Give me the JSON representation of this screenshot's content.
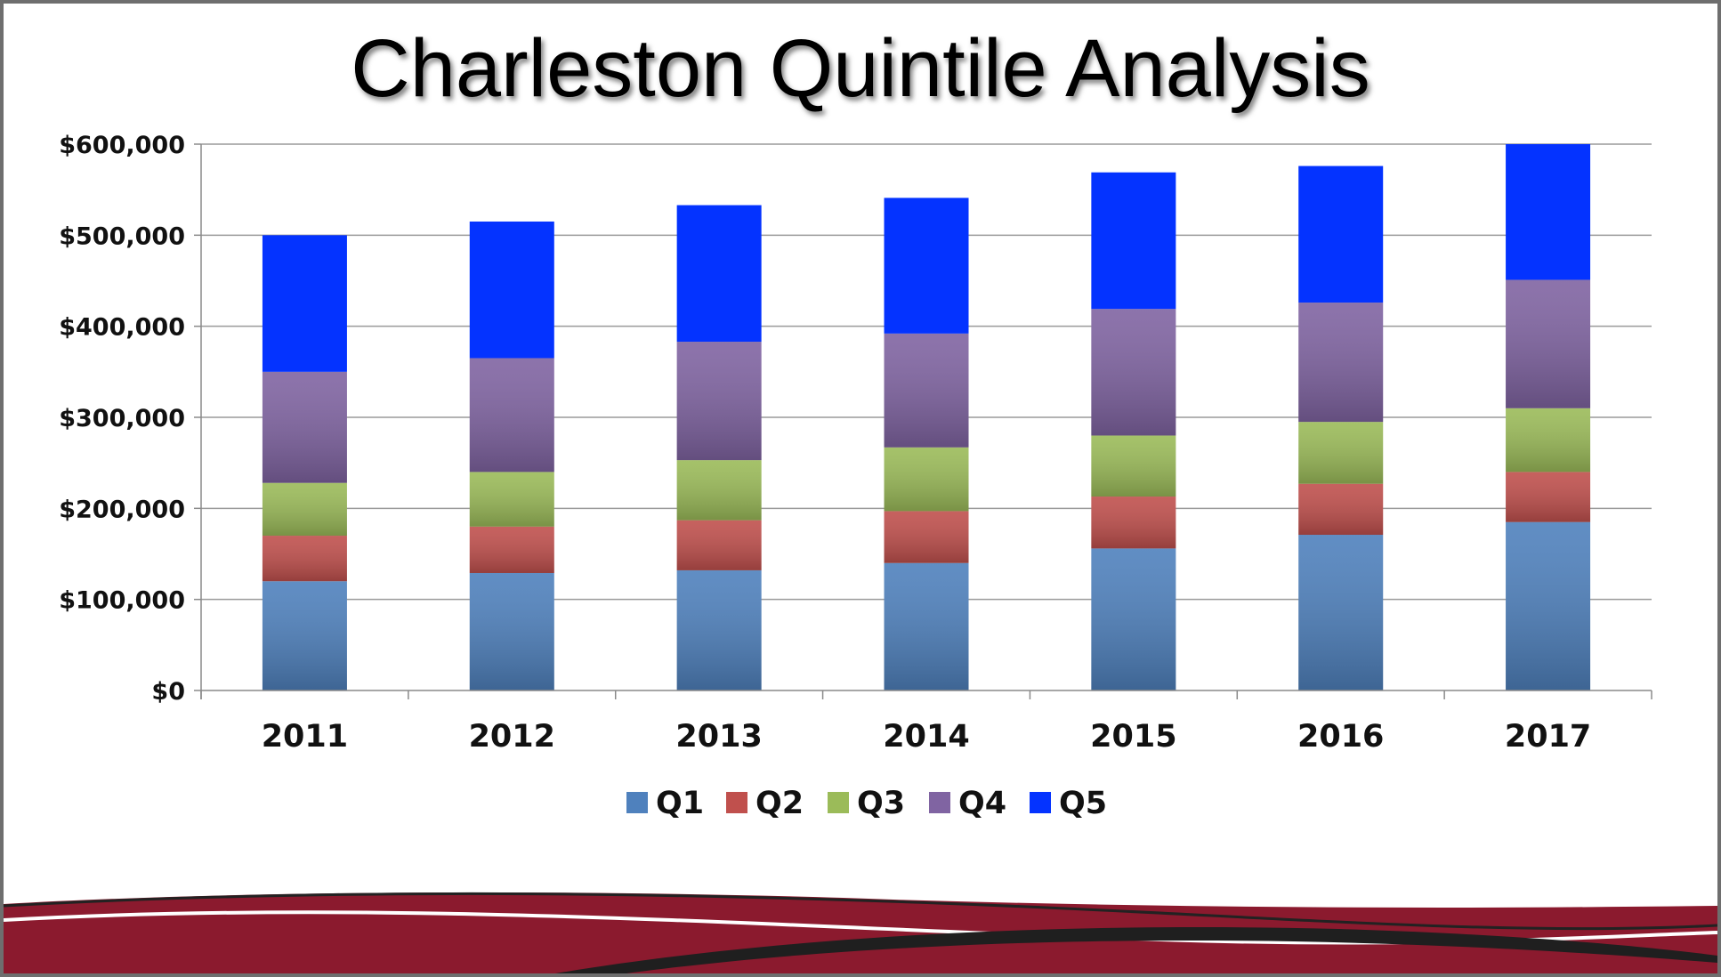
{
  "chart_data": {
    "type": "bar",
    "stacked": true,
    "title": "Charleston Quintile Analysis",
    "xlabel": "",
    "ylabel": "",
    "categories": [
      "2011",
      "2012",
      "2013",
      "2014",
      "2015",
      "2016",
      "2017"
    ],
    "ylim": [
      0,
      600000
    ],
    "yticks": [
      0,
      100000,
      200000,
      300000,
      400000,
      500000,
      600000
    ],
    "ytick_labels": [
      "$0",
      "$100,000",
      "$200,000",
      "$300,000",
      "$400,000",
      "$500,000",
      "$600,000"
    ],
    "grid": true,
    "legend_position": "bottom",
    "series": [
      {
        "name": "Q1",
        "color": "#4f81bd",
        "values": [
          120000,
          129000,
          132000,
          140000,
          156000,
          171000,
          185000
        ]
      },
      {
        "name": "Q2",
        "color": "#c0504d",
        "values": [
          50000,
          51000,
          55000,
          57000,
          57000,
          56000,
          55000
        ]
      },
      {
        "name": "Q3",
        "color": "#9bbb59",
        "values": [
          58000,
          60000,
          66000,
          70000,
          67000,
          68000,
          70000
        ]
      },
      {
        "name": "Q4",
        "color": "#8064a2",
        "values": [
          122000,
          125000,
          130000,
          125000,
          139000,
          131000,
          141000
        ]
      },
      {
        "name": "Q5",
        "color": "#0433ff",
        "values": [
          150000,
          150000,
          150000,
          149000,
          150000,
          150000,
          149000
        ]
      }
    ]
  },
  "footer": {
    "accent_color": "#8b1a2e"
  }
}
